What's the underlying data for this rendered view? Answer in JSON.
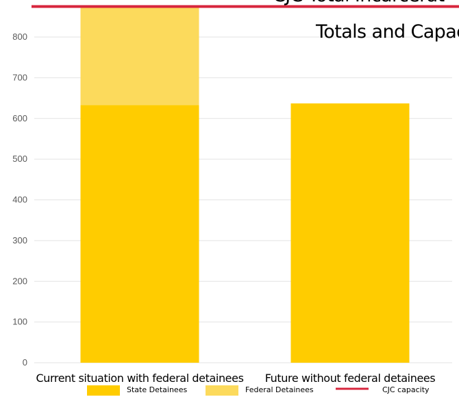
{
  "chart_data": {
    "type": "bar",
    "stacked": true,
    "title_lines": [
      "CJC Total Incarcerat",
      "Totals and Capac"
    ],
    "categories": [
      "Current situation with federal detainees",
      "Future without federal detainees"
    ],
    "series": [
      {
        "name": "State Detainees",
        "values": [
          633,
          637
        ],
        "color": "#FFCC00"
      },
      {
        "name": "Federal Detainees",
        "values": [
          242,
          0
        ],
        "color": "#FCDA5C"
      }
    ],
    "reference_line": {
      "name": "CJC capacity",
      "value": 870,
      "color": "#D7263D"
    },
    "ylim": [
      0,
      900
    ],
    "yticks": [
      0,
      100,
      200,
      300,
      400,
      500,
      600,
      700,
      800
    ],
    "grid": true,
    "legend_position": "bottom",
    "legend": [
      {
        "label": "State Detainees",
        "kind": "swatch",
        "color": "#FFCC00"
      },
      {
        "label": "Federal Detainees",
        "kind": "swatch",
        "color": "#FCDA5C"
      },
      {
        "label": "CJC capacity",
        "kind": "line",
        "color": "#D7263D"
      }
    ]
  }
}
